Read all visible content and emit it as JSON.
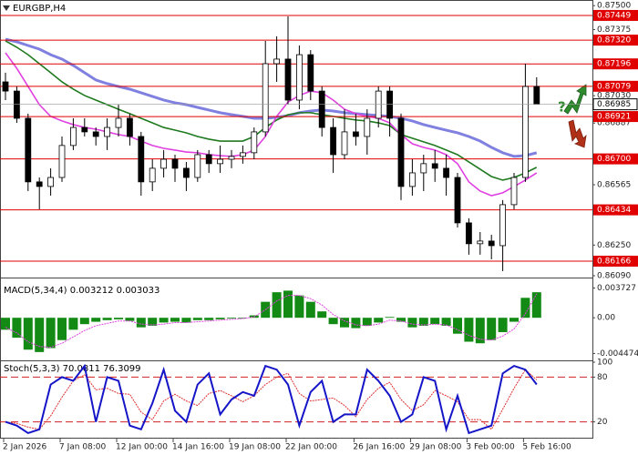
{
  "chart_data": [
    {
      "type": "candlestick",
      "title": "EURGBP,H4",
      "color": "#000000",
      "categories": [
        "2 Jan 2026",
        null,
        null,
        null,
        null,
        "7 Jan 08:00",
        null,
        null,
        null,
        null,
        "12 Jan 00:00",
        null,
        null,
        null,
        null,
        "14 Jan 16:00",
        null,
        null,
        null,
        null,
        "19 Jan 08:00",
        null,
        null,
        null,
        null,
        "22 Jan 00:00",
        null,
        null,
        null,
        null,
        null,
        "26 Jan 16:00",
        null,
        null,
        null,
        null,
        "29 Jan 08:00",
        null,
        null,
        null,
        null,
        "3 Feb 00:00",
        null,
        null,
        null,
        null,
        "5 Feb 16:00",
        null
      ],
      "open": [
        0.87102,
        0.87054,
        0.86912,
        0.8658,
        0.86556,
        0.86603,
        0.8677,
        0.86864,
        0.86841,
        0.86817,
        0.86864,
        0.86912,
        0.86817,
        0.8658,
        0.86651,
        0.86698,
        0.86651,
        0.86603,
        0.86722,
        0.86675,
        0.86698,
        0.86713,
        0.86732,
        0.86841,
        0.87197,
        0.87221,
        0.87007,
        0.87244,
        0.87054,
        0.86864,
        0.86722,
        0.86841,
        0.86817,
        0.86912,
        0.87054,
        0.86912,
        0.86556,
        0.86627,
        0.86675,
        0.86651,
        0.86603,
        0.86366,
        0.86257,
        0.86271,
        0.86247,
        0.86461,
        0.86603,
        0.87078
      ],
      "high": [
        0.8715,
        0.87078,
        0.86936,
        0.86603,
        0.86651,
        0.86817,
        0.86912,
        0.86912,
        0.86864,
        0.86912,
        0.86983,
        0.86936,
        0.86841,
        0.86698,
        0.86746,
        0.86722,
        0.86684,
        0.86746,
        0.86746,
        0.8677,
        0.86746,
        0.8677,
        0.86864,
        0.87316,
        0.8734,
        0.87444,
        0.87292,
        0.87268,
        0.87078,
        0.86912,
        0.86959,
        0.86936,
        0.86959,
        0.87078,
        0.87078,
        0.86936,
        0.86698,
        0.86722,
        0.86746,
        0.86722,
        0.86627,
        0.8639,
        0.86318,
        0.86304,
        0.86485,
        0.86627,
        0.87197,
        0.87126
      ],
      "low": [
        0.87007,
        0.86888,
        0.86532,
        0.86437,
        0.86508,
        0.8658,
        0.86746,
        0.86817,
        0.8677,
        0.86746,
        0.86817,
        0.8677,
        0.86508,
        0.86532,
        0.86603,
        0.8658,
        0.86532,
        0.8658,
        0.86627,
        0.86627,
        0.86651,
        0.86675,
        0.86698,
        0.86817,
        0.87102,
        0.86983,
        0.86959,
        0.87007,
        0.86817,
        0.86627,
        0.86698,
        0.8677,
        0.86722,
        0.86864,
        0.86817,
        0.86485,
        0.86508,
        0.86532,
        0.8658,
        0.86508,
        0.86342,
        0.862,
        0.862,
        0.86176,
        0.86114,
        0.86437,
        0.8658,
        0.86983
      ],
      "close": [
        0.87054,
        0.86912,
        0.8658,
        0.86556,
        0.86603,
        0.8677,
        0.86864,
        0.86841,
        0.86817,
        0.86864,
        0.86912,
        0.86817,
        0.8658,
        0.86651,
        0.86698,
        0.86651,
        0.86603,
        0.86722,
        0.86675,
        0.86698,
        0.86713,
        0.86732,
        0.86841,
        0.87197,
        0.87221,
        0.87007,
        0.87244,
        0.87054,
        0.86864,
        0.86722,
        0.86841,
        0.86817,
        0.86912,
        0.87054,
        0.86912,
        0.86556,
        0.86627,
        0.86675,
        0.86651,
        0.86603,
        0.86366,
        0.86257,
        0.86271,
        0.86247,
        0.86461,
        0.86603,
        0.87078,
        0.86985
      ],
      "series": [
        {
          "color": "#8080e0",
          "values": [
            0.87325,
            0.87311,
            0.87292,
            0.87273,
            0.87244,
            0.87221,
            0.87188,
            0.8715,
            0.87112,
            0.87093,
            0.87078,
            0.87064,
            0.87045,
            0.87026,
            0.87007,
            0.86993,
            0.86983,
            0.86969,
            0.86955,
            0.86941,
            0.86931,
            0.86922,
            0.86912,
            0.86912,
            0.86917,
            0.86926,
            0.86941,
            0.8695,
            0.86955,
            0.8695,
            0.86941,
            0.86936,
            0.86931,
            0.86926,
            0.86922,
            0.86912,
            0.86898,
            0.86879,
            0.86864,
            0.8685,
            0.86836,
            0.86817,
            0.86793,
            0.8676,
            0.86732,
            0.86713,
            0.86717,
            0.86732
          ]
        },
        {
          "color": "#1f7a1f",
          "values": [
            0.87316,
            0.87283,
            0.87244,
            0.87197,
            0.8715,
            0.87102,
            0.87064,
            0.87031,
            0.87007,
            0.86983,
            0.86959,
            0.86936,
            0.86912,
            0.86888,
            0.86864,
            0.8685,
            0.86836,
            0.86817,
            0.86803,
            0.86793,
            0.86793,
            0.86793,
            0.86817,
            0.86864,
            0.86903,
            0.86931,
            0.86941,
            0.86941,
            0.86931,
            0.86922,
            0.86912,
            0.86903,
            0.86898,
            0.86888,
            0.86874,
            0.86827,
            0.86808,
            0.86789,
            0.8677,
            0.86746,
            0.86722,
            0.86684,
            0.86646,
            0.86608,
            0.86589,
            0.86603,
            0.86627,
            0.86656
          ]
        },
        {
          "color": "#e040e0",
          "values": [
            0.87254,
            0.87173,
            0.87078,
            0.86983,
            0.86922,
            0.86898,
            0.86879,
            0.86864,
            0.86855,
            0.86841,
            0.86827,
            0.86817,
            0.86793,
            0.8677,
            0.86755,
            0.86746,
            0.86736,
            0.86732,
            0.86722,
            0.86717,
            0.86713,
            0.86722,
            0.86746,
            0.86817,
            0.86922,
            0.86997,
            0.87031,
            0.87054,
            0.87045,
            0.87007,
            0.86959,
            0.86936,
            0.86922,
            0.86912,
            0.86888,
            0.86827,
            0.86779,
            0.8676,
            0.86746,
            0.86722,
            0.86675,
            0.8658,
            0.86532,
            0.86508,
            0.86523,
            0.86556,
            0.86589,
            0.86627
          ]
        }
      ],
      "ylim": [
        0.8609,
        0.8752
      ],
      "yticks": [
        {
          "value": 0.875,
          "label": "0.87500"
        },
        {
          "value": 0.87375,
          "label": "0.87375"
        },
        {
          "value": 0.8703,
          "label": "0.87030"
        },
        {
          "value": 0.86887,
          "label": "0.86887"
        },
        {
          "value": 0.86565,
          "label": "0.86565"
        },
        {
          "value": 0.8625,
          "label": "0.86250"
        },
        {
          "value": 0.8609,
          "label": "0.86090"
        }
      ],
      "levels_color": "#e00000",
      "levels": [
        {
          "value": 0.87449,
          "label": "0.87449"
        },
        {
          "value": 0.8732,
          "label": "0.87320"
        },
        {
          "value": 0.87196,
          "label": "0.87196"
        },
        {
          "value": 0.87079,
          "label": "0.87079"
        },
        {
          "value": 0.86921,
          "label": "0.86921"
        },
        {
          "value": 0.867,
          "label": "0.86700"
        },
        {
          "value": 0.86434,
          "label": "0.86434"
        },
        {
          "value": 0.86166,
          "label": "0.86166"
        }
      ],
      "current": {
        "value": 0.86985,
        "label": "0.86985"
      }
    },
    {
      "type": "macd",
      "title": "MACD(5,34,4) 0.003212 0.003033",
      "color": "#138a13",
      "signal_color": "#e040e0",
      "values": [
        -0.0015,
        -0.0025,
        -0.004,
        -0.0043,
        -0.0038,
        -0.0028,
        -0.0015,
        -0.0008,
        -0.0005,
        -0.0003,
        -0.0002,
        -0.0004,
        -0.0012,
        -0.001,
        -0.0006,
        -0.0005,
        -0.0006,
        -0.0003,
        -0.0003,
        -0.0002,
        -0.0001,
        -0.0001,
        0.0003,
        0.002,
        0.0032,
        0.0034,
        0.0028,
        0.002,
        0.0008,
        -0.0008,
        -0.0012,
        -0.0013,
        -0.001,
        -0.0006,
        0.0001,
        -0.0005,
        -0.0012,
        -0.001,
        -0.0008,
        -0.001,
        -0.002,
        -0.003,
        -0.0032,
        -0.0028,
        -0.0018,
        -0.0005,
        0.0025,
        0.0032
      ],
      "signal": [
        -0.0012,
        -0.0019,
        -0.003,
        -0.0036,
        -0.0037,
        -0.0032,
        -0.0024,
        -0.0016,
        -0.001,
        -0.0007,
        -0.0004,
        -0.0004,
        -0.0008,
        -0.0009,
        -0.0008,
        -0.0006,
        -0.0006,
        -0.0005,
        -0.0004,
        -0.0003,
        -0.0002,
        -0.0001,
        0.0001,
        0.001,
        0.0021,
        0.0028,
        0.0028,
        0.0024,
        0.0016,
        0.0004,
        -0.0004,
        -0.0009,
        -0.001,
        -0.0008,
        -0.0003,
        -0.0004,
        -0.0008,
        -0.0009,
        -0.0008,
        -0.0009,
        -0.0015,
        -0.0022,
        -0.0027,
        -0.0028,
        -0.0023,
        -0.0014,
        0.0005,
        0.003
      ],
      "ylim": [
        -0.005,
        0.0047
      ],
      "yticks": [
        {
          "value": 0.003727,
          "label": "0.003727"
        },
        {
          "value": 0,
          "label": "0.00"
        },
        {
          "value": -0.004474,
          "label": "-0.004474"
        }
      ]
    },
    {
      "type": "stochastic",
      "title": "Stoch(5,3,3) 70.0811 76.3099",
      "color": "#1515c8",
      "signal_color": "#e03030",
      "values": [
        20,
        15,
        5,
        10,
        70,
        80,
        75,
        95,
        20,
        80,
        75,
        15,
        10,
        45,
        90,
        35,
        20,
        70,
        85,
        30,
        50,
        60,
        55,
        95,
        90,
        70,
        15,
        60,
        75,
        20,
        30,
        30,
        90,
        75,
        55,
        20,
        30,
        80,
        75,
        10,
        55,
        5,
        10,
        15,
        85,
        95,
        90,
        70.0811
      ],
      "signal": [
        20,
        18,
        13,
        10,
        28,
        53,
        75,
        83,
        63,
        65,
        58,
        57,
        33,
        23,
        48,
        57,
        48,
        42,
        58,
        62,
        55,
        47,
        55,
        70,
        80,
        85,
        58,
        48,
        50,
        52,
        42,
        27,
        50,
        65,
        73,
        50,
        35,
        43,
        62,
        55,
        47,
        23,
        23,
        10,
        37,
        65,
        90,
        76.3099
      ],
      "ylim": [
        0,
        100
      ],
      "yticks": [
        100,
        80,
        20
      ],
      "levels": [
        80,
        20
      ]
    }
  ]
}
